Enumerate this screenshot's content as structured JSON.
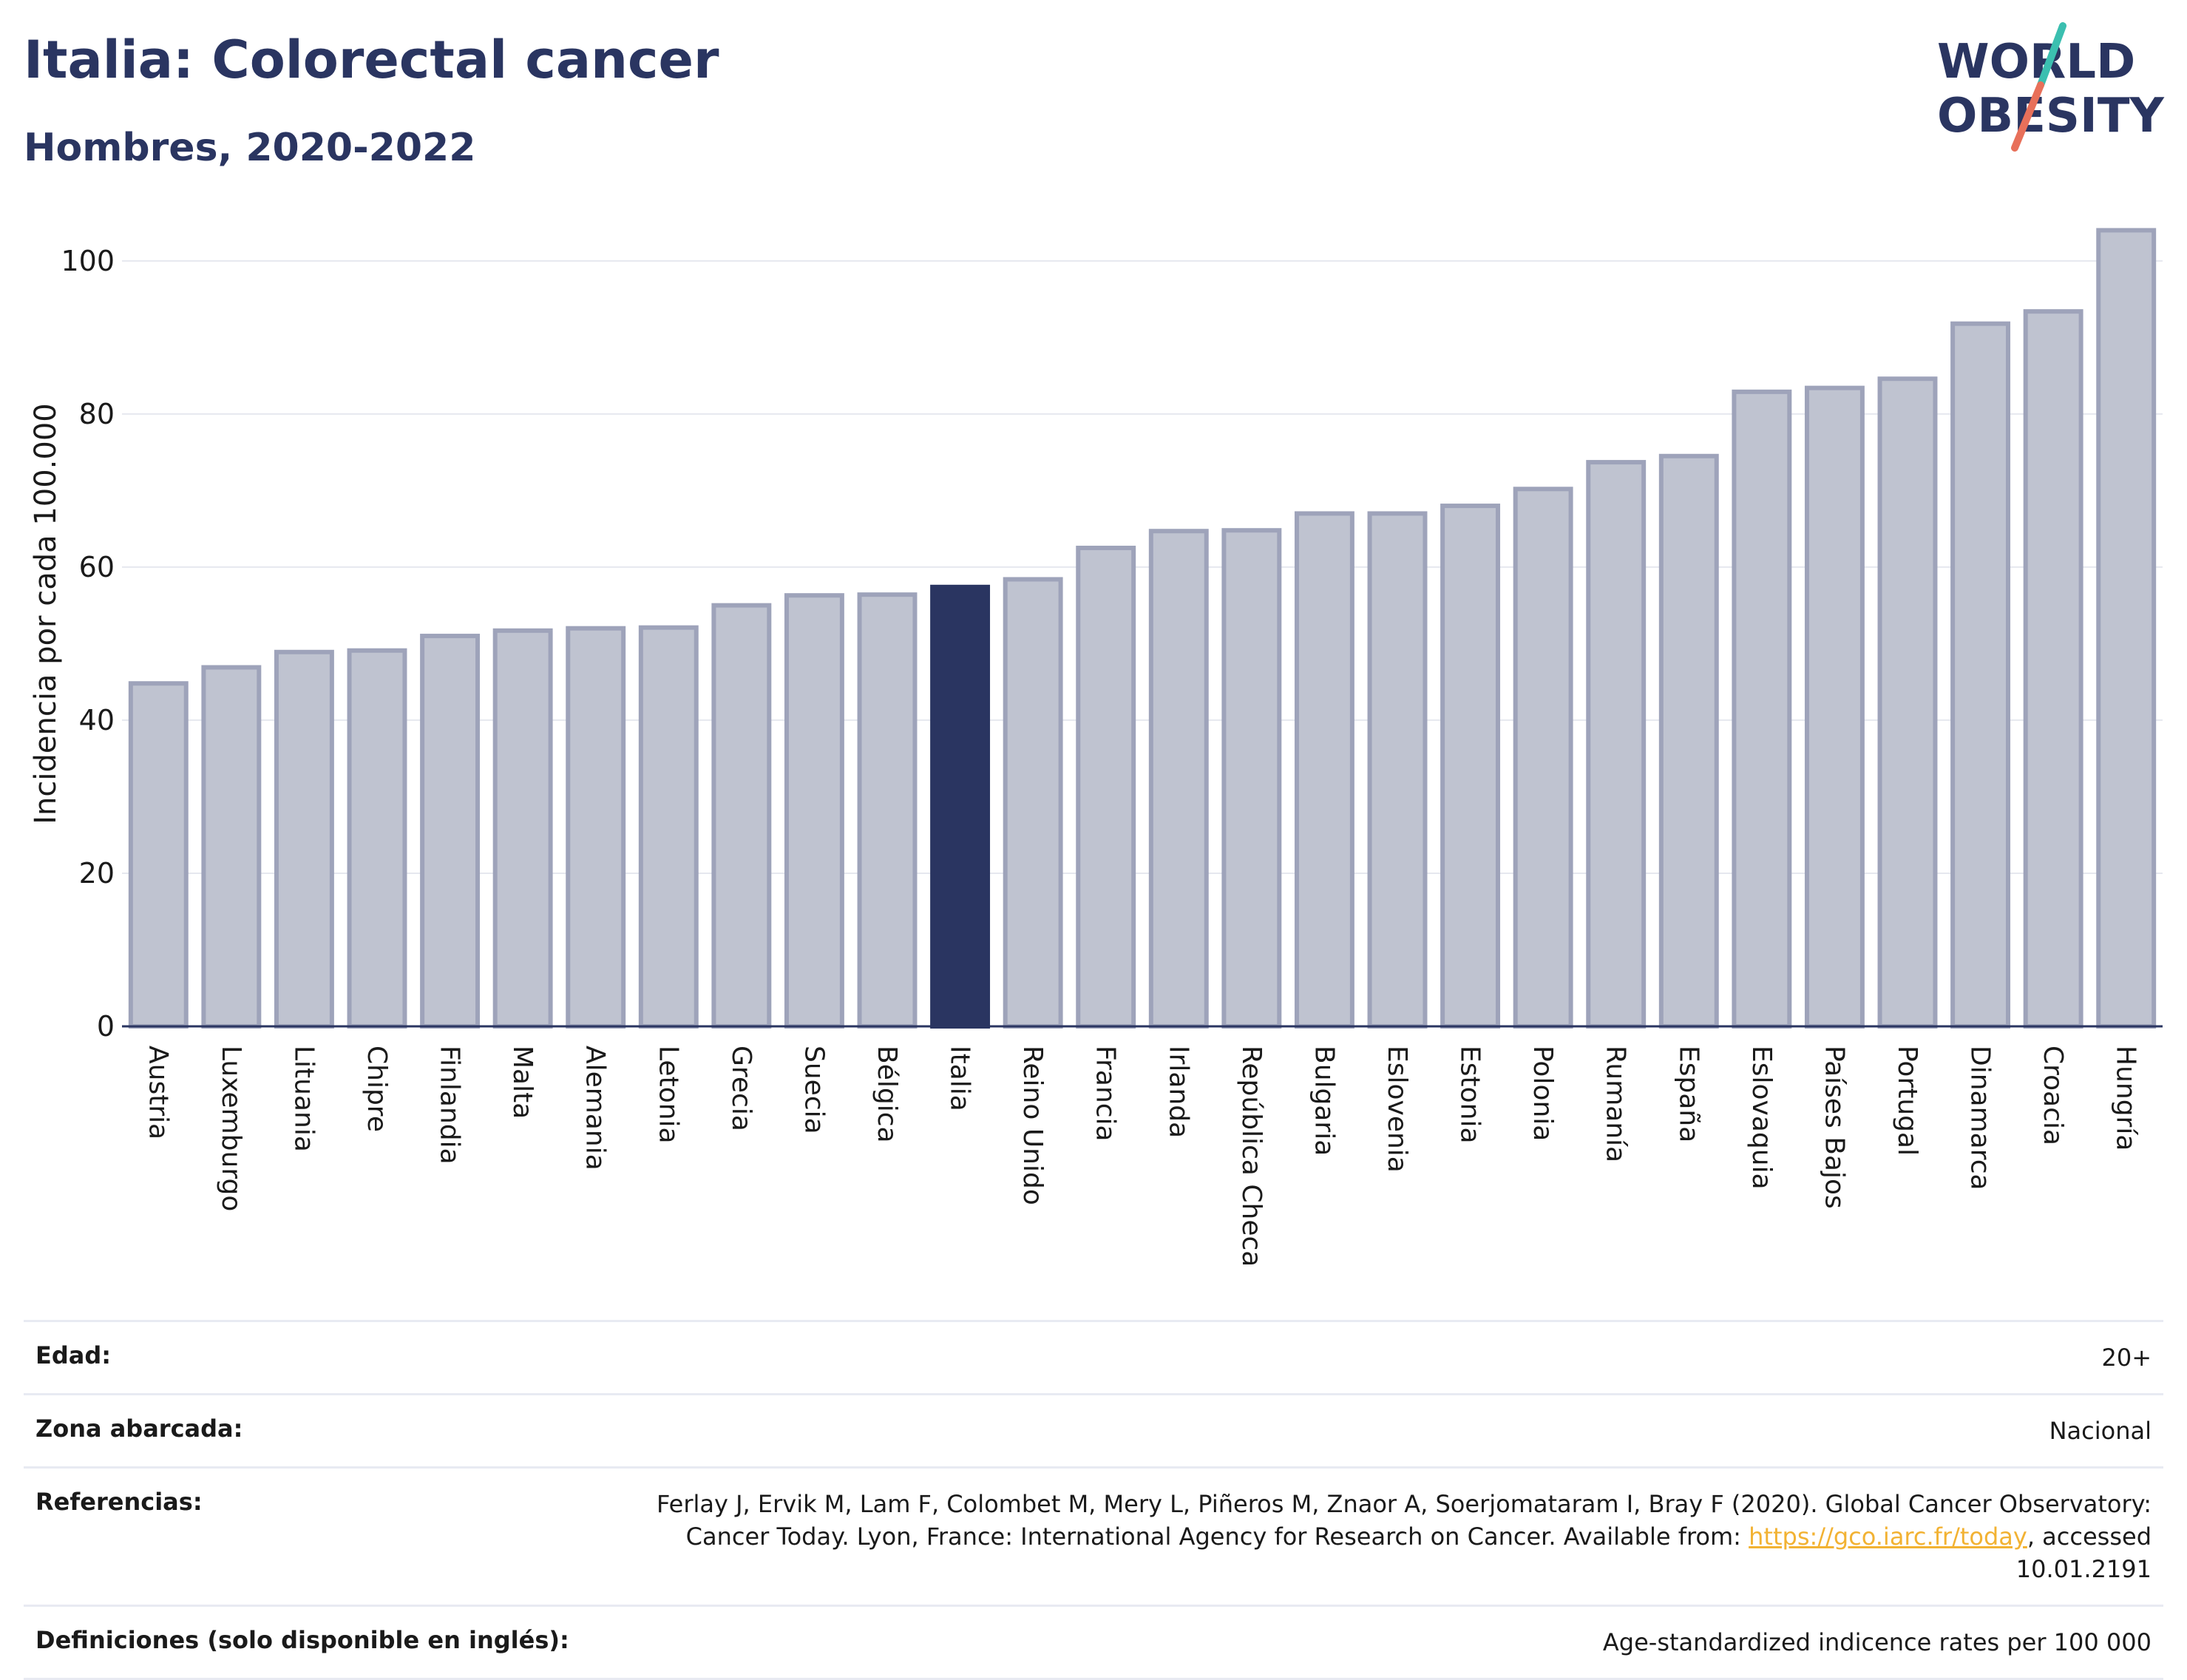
{
  "header": {
    "title": "Italia: Colorectal cancer",
    "subtitle": "Hombres, 2020-2022"
  },
  "logo": {
    "line1": "WORLD",
    "line2": "OBESITY",
    "colors": {
      "text": "#2a3561",
      "slash_teal": "#3bbfb0",
      "slash_coral": "#e8705a"
    }
  },
  "colors": {
    "bar": "#bfc3d0",
    "bar_stroke": "#9ea3ba",
    "highlight": "#2a3561",
    "grid": "#e6e8ef",
    "axis": "#2a3561"
  },
  "chart_data": {
    "type": "bar",
    "title": "Italia: Colorectal cancer",
    "subtitle": "Hombres, 2020-2022",
    "ylabel": "Incidencia por cada 100.000",
    "xlabel": "",
    "ylim": [
      0,
      108
    ],
    "yticks": [
      0,
      20,
      40,
      60,
      80,
      100
    ],
    "grid": true,
    "highlight": "Italia",
    "categories": [
      "Austria",
      "Luxemburgo",
      "Lituania",
      "Chipre",
      "Finlandia",
      "Malta",
      "Alemania",
      "Letonia",
      "Grecia",
      "Suecia",
      "Bélgica",
      "Italia",
      "Reino Unido",
      "Francia",
      "Irlanda",
      "República Checa",
      "Bulgaria",
      "Eslovenia",
      "Estonia",
      "Polonia",
      "Rumanía",
      "España",
      "Eslovaquia",
      "Países Bajos",
      "Portugal",
      "Dinamarca",
      "Croacia",
      "Hungría"
    ],
    "values": [
      44.8,
      46.9,
      48.9,
      49.1,
      51.0,
      51.7,
      52.0,
      52.1,
      55.0,
      56.3,
      56.4,
      57.4,
      58.4,
      62.5,
      64.7,
      64.8,
      67.0,
      67.0,
      68.0,
      70.2,
      73.7,
      74.5,
      82.9,
      83.4,
      84.6,
      91.8,
      93.4,
      104.0
    ]
  },
  "metadata_table": {
    "rows": [
      {
        "label": "Edad:",
        "value": "20+"
      },
      {
        "label": "Zona abarcada:",
        "value": "Nacional"
      },
      {
        "label": "Referencias:",
        "value_prefix": "Ferlay J, Ervik M, Lam F, Colombet M, Mery L, Piñeros M, Znaor A, Soerjomataram I, Bray F (2020). Global Cancer Observatory: Cancer Today. Lyon, France: International Agency for Research on Cancer. Available from: ",
        "link_text": "https://gco.iarc.fr/today",
        "value_suffix": ", accessed 10.01.2191"
      },
      {
        "label": "Definiciones (solo disponible en inglés):",
        "value": "Age-standardized indicence rates per 100 000"
      }
    ]
  }
}
